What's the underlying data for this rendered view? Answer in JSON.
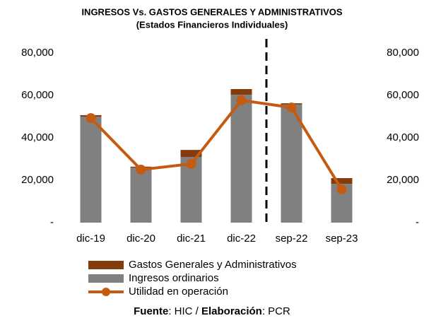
{
  "chart_data": {
    "type": "bar",
    "title": "INGRESOS Vs. GASTOS GENERALES Y ADMINISTRATIVOS",
    "subtitle": "(Estados Financieros Individuales)",
    "categories": [
      "dic-19",
      "dic-20",
      "dic-21",
      "dic-22",
      "sep-22",
      "sep-23"
    ],
    "series": [
      {
        "name": "Gastos Generales y Administrativos",
        "type": "bar",
        "color": "#843c0c",
        "values": [
          700,
          400,
          3300,
          2700,
          600,
          2700
        ]
      },
      {
        "name": "Ingresos ordinarios",
        "type": "bar",
        "color": "#808080",
        "values": [
          50000,
          26000,
          31000,
          60300,
          55700,
          18300
        ]
      },
      {
        "name": "Utilidad en  operación",
        "type": "line",
        "color": "#c55a11",
        "values": [
          49300,
          25000,
          27700,
          57700,
          54300,
          15700
        ]
      }
    ],
    "ylim": [
      0,
      80000
    ],
    "yticks": [
      {
        "value": 0,
        "label": "-"
      },
      {
        "value": 20000,
        "label": "20,000"
      },
      {
        "value": 40000,
        "label": "40,000"
      },
      {
        "value": 60000,
        "label": "60,000"
      },
      {
        "value": 80000,
        "label": "80,000"
      }
    ],
    "y2lim": [
      0,
      80000
    ],
    "y2ticks": [
      {
        "value": 0,
        "label": "-"
      },
      {
        "value": 20000,
        "label": "20,000"
      },
      {
        "value": 40000,
        "label": "40,000"
      },
      {
        "value": 60000,
        "label": "60,000"
      },
      {
        "value": 80000,
        "label": "80,000"
      }
    ],
    "grid": false,
    "source": [
      "Fuente",
      ": HIC / ",
      "Elaboración",
      ": PCR"
    ]
  }
}
